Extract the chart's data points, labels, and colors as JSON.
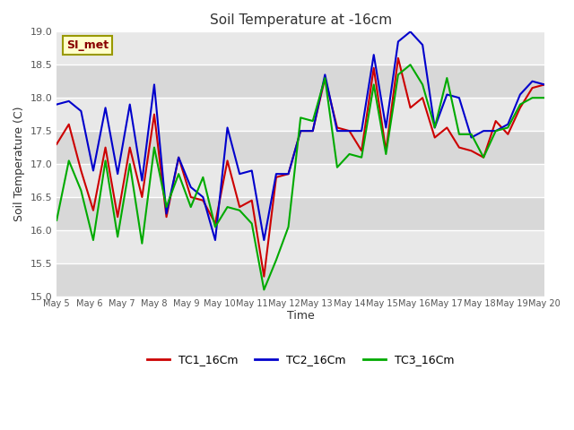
{
  "title": "Soil Temperature at -16cm",
  "xlabel": "Time",
  "ylabel": "Soil Temperature (C)",
  "ylim": [
    15.0,
    19.0
  ],
  "yticks": [
    15.0,
    15.5,
    16.0,
    16.5,
    17.0,
    17.5,
    18.0,
    18.5,
    19.0
  ],
  "xtick_labels": [
    "May 5",
    "May 6",
    "May 7",
    "May 8",
    "May 9",
    "May 10",
    "May 11",
    "May 12",
    "May 13",
    "May 14",
    "May 15",
    "May 16",
    "May 17",
    "May 18",
    "May 19",
    "May 20"
  ],
  "figure_bg_color": "#ffffff",
  "plot_bg_color": "#e8e8e8",
  "grid_color": "#ffffff",
  "band_color_light": "#e8e8e8",
  "band_color_dark": "#d8d8d8",
  "legend_label": "SI_met",
  "legend_box_color": "#ffffcc",
  "legend_box_edge": "#999900",
  "series": {
    "TC1_16Cm": {
      "color": "#cc0000",
      "label": "TC1_16Cm"
    },
    "TC2_16Cm": {
      "color": "#0000cc",
      "label": "TC2_16Cm"
    },
    "TC3_16Cm": {
      "color": "#00aa00",
      "label": "TC3_16Cm"
    }
  },
  "TC1": [
    17.3,
    17.6,
    16.9,
    16.3,
    17.25,
    16.2,
    17.25,
    16.5,
    17.75,
    16.2,
    17.1,
    16.5,
    16.45,
    16.1,
    17.05,
    16.35,
    16.45,
    15.3,
    16.8,
    16.85,
    17.5,
    17.5,
    18.3,
    17.55,
    17.5,
    17.2,
    18.45,
    17.2,
    18.6,
    17.85,
    18.0,
    17.4,
    17.55,
    17.25,
    17.2,
    17.1,
    17.65,
    17.45,
    17.85,
    18.15,
    18.2
  ],
  "TC2": [
    17.9,
    17.95,
    17.8,
    16.9,
    17.85,
    16.85,
    17.9,
    16.75,
    18.2,
    16.25,
    17.1,
    16.65,
    16.5,
    15.85,
    17.55,
    16.85,
    16.9,
    15.85,
    16.85,
    16.85,
    17.5,
    17.5,
    18.35,
    17.5,
    17.5,
    17.5,
    18.65,
    17.55,
    18.85,
    19.0,
    18.8,
    17.55,
    18.05,
    18.0,
    17.4,
    17.5,
    17.5,
    17.6,
    18.05,
    18.25,
    18.2
  ],
  "TC3": [
    16.15,
    17.05,
    16.6,
    15.85,
    17.05,
    15.9,
    17.0,
    15.8,
    17.25,
    16.35,
    16.85,
    16.35,
    16.8,
    16.05,
    16.35,
    16.3,
    16.1,
    15.1,
    15.55,
    16.05,
    17.7,
    17.65,
    18.3,
    16.95,
    17.15,
    17.1,
    18.2,
    17.15,
    18.35,
    18.5,
    18.2,
    17.55,
    18.3,
    17.45,
    17.45,
    17.1,
    17.5,
    17.55,
    17.9,
    18.0,
    18.0
  ],
  "n_points": 41
}
